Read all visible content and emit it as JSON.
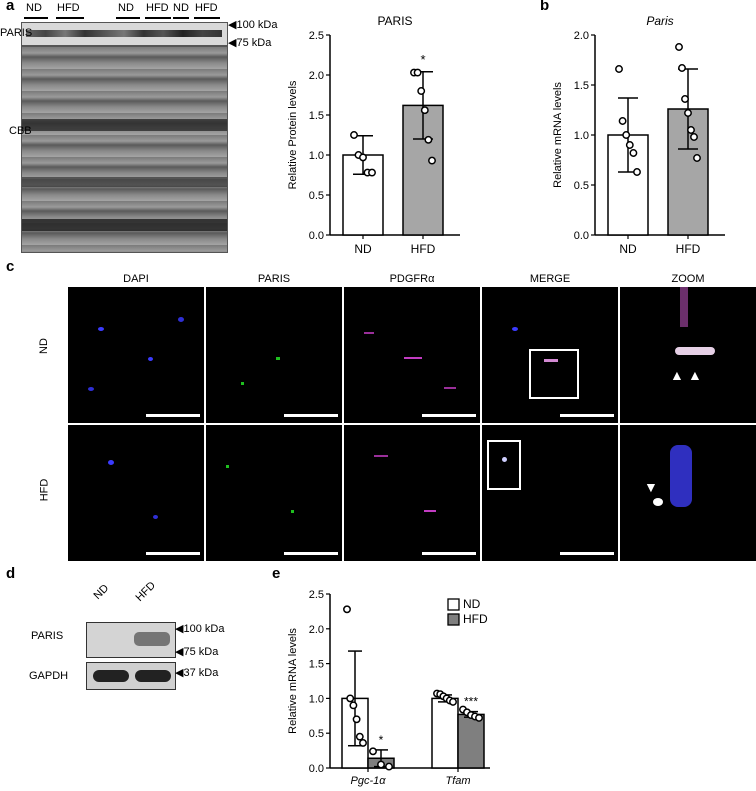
{
  "panels": {
    "a": "a",
    "b": "b",
    "c": "c",
    "d": "d",
    "e": "e"
  },
  "blot_a": {
    "lane_groups": [
      "ND",
      "HFD",
      "ND",
      "HFD",
      "ND",
      "HFD"
    ],
    "markers": [
      "100 kDa",
      "75 kDa"
    ],
    "row_labels": {
      "paris": "PARIS",
      "cbb": "CBB"
    }
  },
  "blot_d": {
    "lanes": [
      "ND",
      "HFD"
    ],
    "markers": [
      "100 kDa",
      "75 kDa",
      "37 kDa"
    ],
    "row_labels": {
      "paris": "PARIS",
      "gapdh": "GAPDH"
    }
  },
  "micrographs": {
    "columns": [
      "DAPI",
      "PARIS",
      "PDGFRα",
      "MERGE",
      "ZOOM"
    ],
    "rows": [
      "ND",
      "HFD"
    ]
  },
  "chart_data": [
    {
      "id": "a",
      "type": "bar",
      "title": "PARIS",
      "ylabel": "Relative Protein levels",
      "categories": [
        "ND",
        "HFD"
      ],
      "values": [
        1.0,
        1.62
      ],
      "errors": [
        0.24,
        0.42
      ],
      "points": [
        [
          1.25,
          1.0,
          0.97,
          0.78,
          0.78
        ],
        [
          2.03,
          2.03,
          1.8,
          1.56,
          1.19,
          0.93
        ]
      ],
      "ylim": [
        0,
        2.5
      ],
      "yticks": [
        "0.0",
        "0.5",
        "1.0",
        "1.5",
        "2.0",
        "2.5"
      ],
      "annotations": [
        "",
        "*"
      ],
      "fills": [
        "#ffffff",
        "#a6a6a6"
      ]
    },
    {
      "id": "b",
      "type": "bar",
      "title": "Paris",
      "ylabel": "Relative mRNA levels",
      "categories": [
        "ND",
        "HFD"
      ],
      "values": [
        1.0,
        1.26
      ],
      "errors": [
        0.37,
        0.4
      ],
      "points": [
        [
          1.66,
          1.14,
          1.0,
          0.9,
          0.82,
          0.63
        ],
        [
          1.88,
          1.67,
          1.36,
          1.22,
          1.05,
          0.98,
          0.77
        ]
      ],
      "ylim": [
        0,
        2.0
      ],
      "yticks": [
        "0.0",
        "0.5",
        "1.0",
        "1.5",
        "2.0"
      ],
      "annotations": [
        "",
        ""
      ],
      "fills": [
        "#ffffff",
        "#a6a6a6"
      ]
    },
    {
      "id": "e",
      "type": "bar",
      "ylabel": "Relative mRNA levels",
      "categories": [
        "Pgc-1α",
        "Tfam"
      ],
      "series": [
        {
          "name": "ND",
          "values": [
            1.0,
            1.0
          ],
          "errors": [
            0.68,
            0.05
          ],
          "points": [
            [
              2.28,
              1.0,
              0.9,
              0.7,
              0.45,
              0.36
            ],
            [
              1.07,
              1.06,
              1.03,
              1.0,
              0.97,
              0.95
            ]
          ],
          "fill": "#ffffff"
        },
        {
          "name": "HFD",
          "values": [
            0.14,
            0.77
          ],
          "errors": [
            0.12,
            0.04
          ],
          "points": [
            [
              0.24,
              0.05,
              0.02
            ],
            [
              0.84,
              0.8,
              0.76,
              0.74,
              0.72
            ]
          ],
          "fill": "#7f7f7f"
        }
      ],
      "annotations": [
        [
          "",
          "*"
        ],
        [
          "",
          "***"
        ]
      ],
      "ylim": [
        0,
        2.5
      ],
      "yticks": [
        "0.0",
        "0.5",
        "1.0",
        "1.5",
        "2.0",
        "2.5"
      ],
      "legend": "top-right"
    }
  ]
}
